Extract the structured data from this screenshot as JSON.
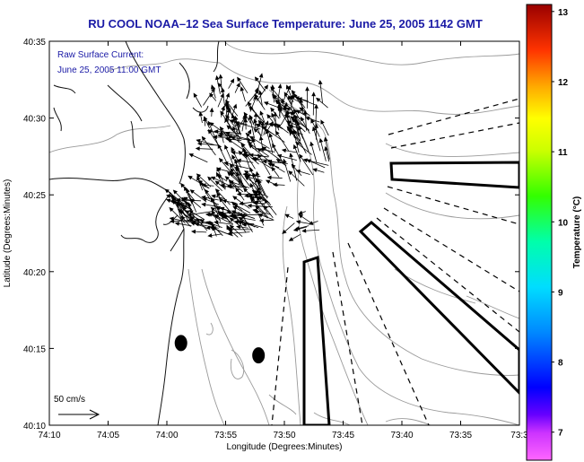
{
  "chart_data": {
    "type": "vector-field-map",
    "title": "RU COOL  NOAA–12  Sea Surface Temperature:  June 25, 2005 1142 GMT",
    "inset_label": "Raw Surface Current:",
    "inset_time": "June 25, 2005 11:00 GMT",
    "xlabel": "Longitude (Degrees:Minutes)",
    "ylabel": "Latitude (Degrees:Minutes)",
    "x_ticks": [
      "74:10",
      "74:05",
      "74:00",
      "73:55",
      "73:50",
      "73:45",
      "73:40",
      "73:35",
      "73:3"
    ],
    "y_ticks": [
      "40:35",
      "40:30",
      "40:25",
      "40:20",
      "40:15",
      "40:10"
    ],
    "xlim_minutes": [
      0,
      40
    ],
    "ylim_minutes": [
      0,
      25
    ],
    "scale_label": "50 cm/s",
    "colorbar": {
      "label": "Temperature (°C)",
      "ticks": [
        13,
        12,
        11,
        10,
        9,
        8,
        7
      ],
      "range": [
        6.6,
        13.1
      ],
      "colors": [
        "#ff66ff",
        "#9933ff",
        "#0000ff",
        "#0099ff",
        "#00ffff",
        "#00ff99",
        "#00ff00",
        "#ccff00",
        "#ffff00",
        "#ff9900",
        "#ff0000",
        "#990000"
      ]
    },
    "station_markers": [
      {
        "lon_min_from_west": 11.2,
        "lat_min_from_south": 5.35
      },
      {
        "lon_min_from_west": 17.8,
        "lat_min_from_south": 4.55
      }
    ],
    "current_field_note": "dense field of raw surface current vectors over the harbor entrance (approx. 74:02–73:53 W, 40:22–40:32 N)",
    "colors": {
      "title": "#1a1aa6",
      "axis": "#000000",
      "contour": "#999999",
      "coast": "#000000"
    }
  }
}
